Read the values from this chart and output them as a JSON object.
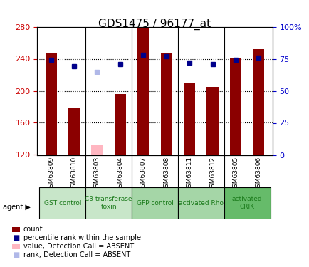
{
  "title": "GDS1475 / 96177_at",
  "samples": [
    "GSM63809",
    "GSM63810",
    "GSM63803",
    "GSM63804",
    "GSM63807",
    "GSM63808",
    "GSM63811",
    "GSM63812",
    "GSM63805",
    "GSM63806"
  ],
  "counts": [
    247,
    178,
    null,
    196,
    282,
    248,
    209,
    205,
    241,
    252
  ],
  "absent_counts": [
    null,
    null,
    132,
    null,
    null,
    null,
    null,
    null,
    null,
    null
  ],
  "percentile_ranks": [
    74,
    69,
    null,
    71,
    78,
    77,
    72,
    71,
    74,
    76
  ],
  "absent_ranks": [
    null,
    null,
    65,
    null,
    null,
    null,
    null,
    null,
    null,
    null
  ],
  "ylim_left": [
    120,
    280
  ],
  "ylim_right": [
    0,
    100
  ],
  "yticks_left": [
    120,
    160,
    200,
    240,
    280
  ],
  "yticks_right": [
    0,
    25,
    50,
    75,
    100
  ],
  "agent_groups": [
    {
      "label": "GST control",
      "start": 0,
      "end": 1,
      "color": "#d4edda",
      "text": "GST control"
    },
    {
      "label": "C3 transferase toxin",
      "start": 2,
      "end": 3,
      "color": "#d4edda",
      "text": "C3 transferase\ntoxin"
    },
    {
      "label": "GFP control",
      "start": 4,
      "end": 5,
      "color": "#90ee90",
      "text": "GFP control"
    },
    {
      "label": "activated Rho",
      "start": 6,
      "end": 7,
      "color": "#90ee90",
      "text": "activated Rho"
    },
    {
      "label": "activated CRIK",
      "start": 8,
      "end": 9,
      "color": "#32cd32",
      "text": "activated\nCRIK"
    }
  ],
  "bar_color": "#8B0000",
  "absent_bar_color": "#ffb6c1",
  "rank_color": "#00008B",
  "absent_rank_color": "#b0b8e8",
  "grid_color": "black",
  "left_axis_color": "#cc0000",
  "right_axis_color": "#0000cc",
  "bar_width": 0.5
}
